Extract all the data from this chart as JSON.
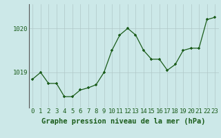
{
  "x": [
    0,
    1,
    2,
    3,
    4,
    5,
    6,
    7,
    8,
    9,
    10,
    11,
    12,
    13,
    14,
    15,
    16,
    17,
    18,
    19,
    20,
    21,
    22,
    23
  ],
  "y": [
    1018.85,
    1019.0,
    1018.75,
    1018.75,
    1018.45,
    1018.45,
    1018.6,
    1018.65,
    1018.72,
    1019.0,
    1019.5,
    1019.85,
    1020.0,
    1019.85,
    1019.5,
    1019.3,
    1019.3,
    1019.05,
    1019.18,
    1019.5,
    1019.55,
    1019.55,
    1020.2,
    1020.25
  ],
  "ylim": [
    1018.2,
    1020.55
  ],
  "yticks": [
    1019,
    1020
  ],
  "xticks": [
    0,
    1,
    2,
    3,
    4,
    5,
    6,
    7,
    8,
    9,
    10,
    11,
    12,
    13,
    14,
    15,
    16,
    17,
    18,
    19,
    20,
    21,
    22,
    23
  ],
  "line_color": "#1a5c1a",
  "marker_color": "#1a5c1a",
  "bg_color": "#cce8e8",
  "grid_color": "#b0c8c8",
  "xlabel": "Graphe pression niveau de la mer (hPa)",
  "xlabel_color": "#1a5c1a",
  "tick_color": "#1a5c1a",
  "axis_label_fontsize": 6.5,
  "xlabel_fontsize": 7.5
}
